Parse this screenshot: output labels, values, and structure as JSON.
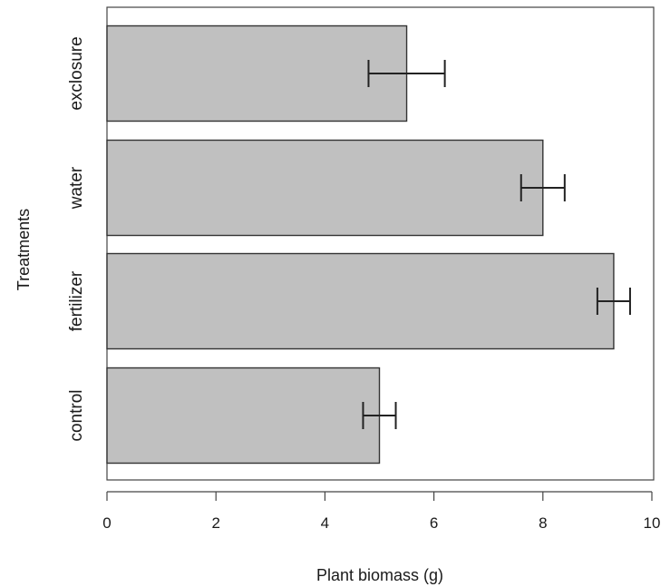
{
  "chart_data": {
    "type": "bar",
    "orientation": "horizontal",
    "categories": [
      "control",
      "fertilizer",
      "water",
      "exclosure"
    ],
    "values": [
      5.0,
      9.3,
      8.0,
      5.5
    ],
    "errors": [
      {
        "low": 4.7,
        "high": 5.3
      },
      {
        "low": 9.0,
        "high": 9.6
      },
      {
        "low": 7.6,
        "high": 8.4
      },
      {
        "low": 4.8,
        "high": 6.2
      }
    ],
    "xlabel": "Plant biomass (g)",
    "ylabel": "Treatments",
    "xlim": [
      0,
      10
    ],
    "xticks": [
      "0",
      "2",
      "4",
      "6",
      "8",
      "10"
    ],
    "grid": false,
    "bar_color": "#c0c0c0",
    "edge_color": "#333333"
  }
}
